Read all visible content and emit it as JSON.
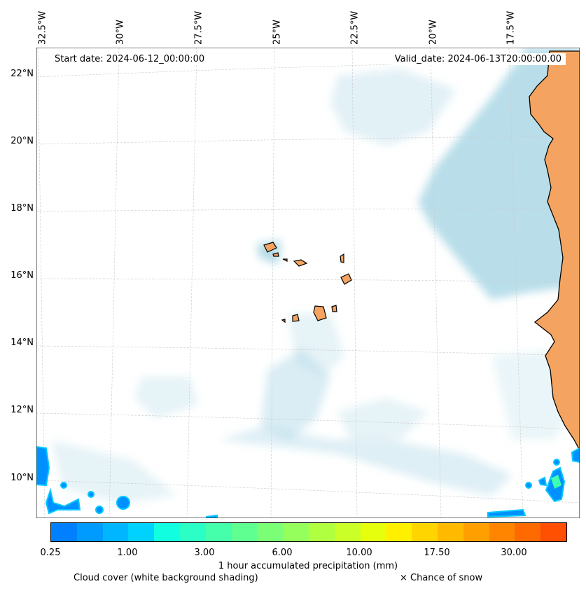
{
  "map": {
    "start_label": "Start date: 2024-06-12_00:00:00",
    "valid_label": "Valid_date: 2024-06-13T20:00:00.00",
    "longitude_labels": [
      "32.5°W",
      "30°W",
      "27.5°W",
      "25°W",
      "22.5°W",
      "20°W",
      "17.5°W"
    ],
    "latitude_labels": [
      "22°N",
      "20°N",
      "18°N",
      "16°N",
      "14°N",
      "12°N",
      "10°N"
    ],
    "land_color": "#f4a460",
    "cloud_color": "#add8e6"
  },
  "colorbar": {
    "tick_labels": [
      "0.25",
      "1.00",
      "3.00",
      "6.00",
      "10.00",
      "17.50",
      "30.00"
    ],
    "colors": [
      "#0080ff",
      "#009bff",
      "#00b6ff",
      "#00d2ff",
      "#11ffe0",
      "#2bffc6",
      "#46ffab",
      "#60ff91",
      "#7bff76",
      "#95ff5c",
      "#b0ff41",
      "#caff27",
      "#e5ff0c",
      "#fff000",
      "#ffd500",
      "#ffba00",
      "#ff9f00",
      "#ff8500",
      "#ff6a00",
      "#ff4f00"
    ],
    "title": "1 hour accumulated precipitation (mm)"
  },
  "legend": {
    "cloud_cover": "Cloud cover (white background shading)",
    "snow": "× Chance of snow"
  }
}
